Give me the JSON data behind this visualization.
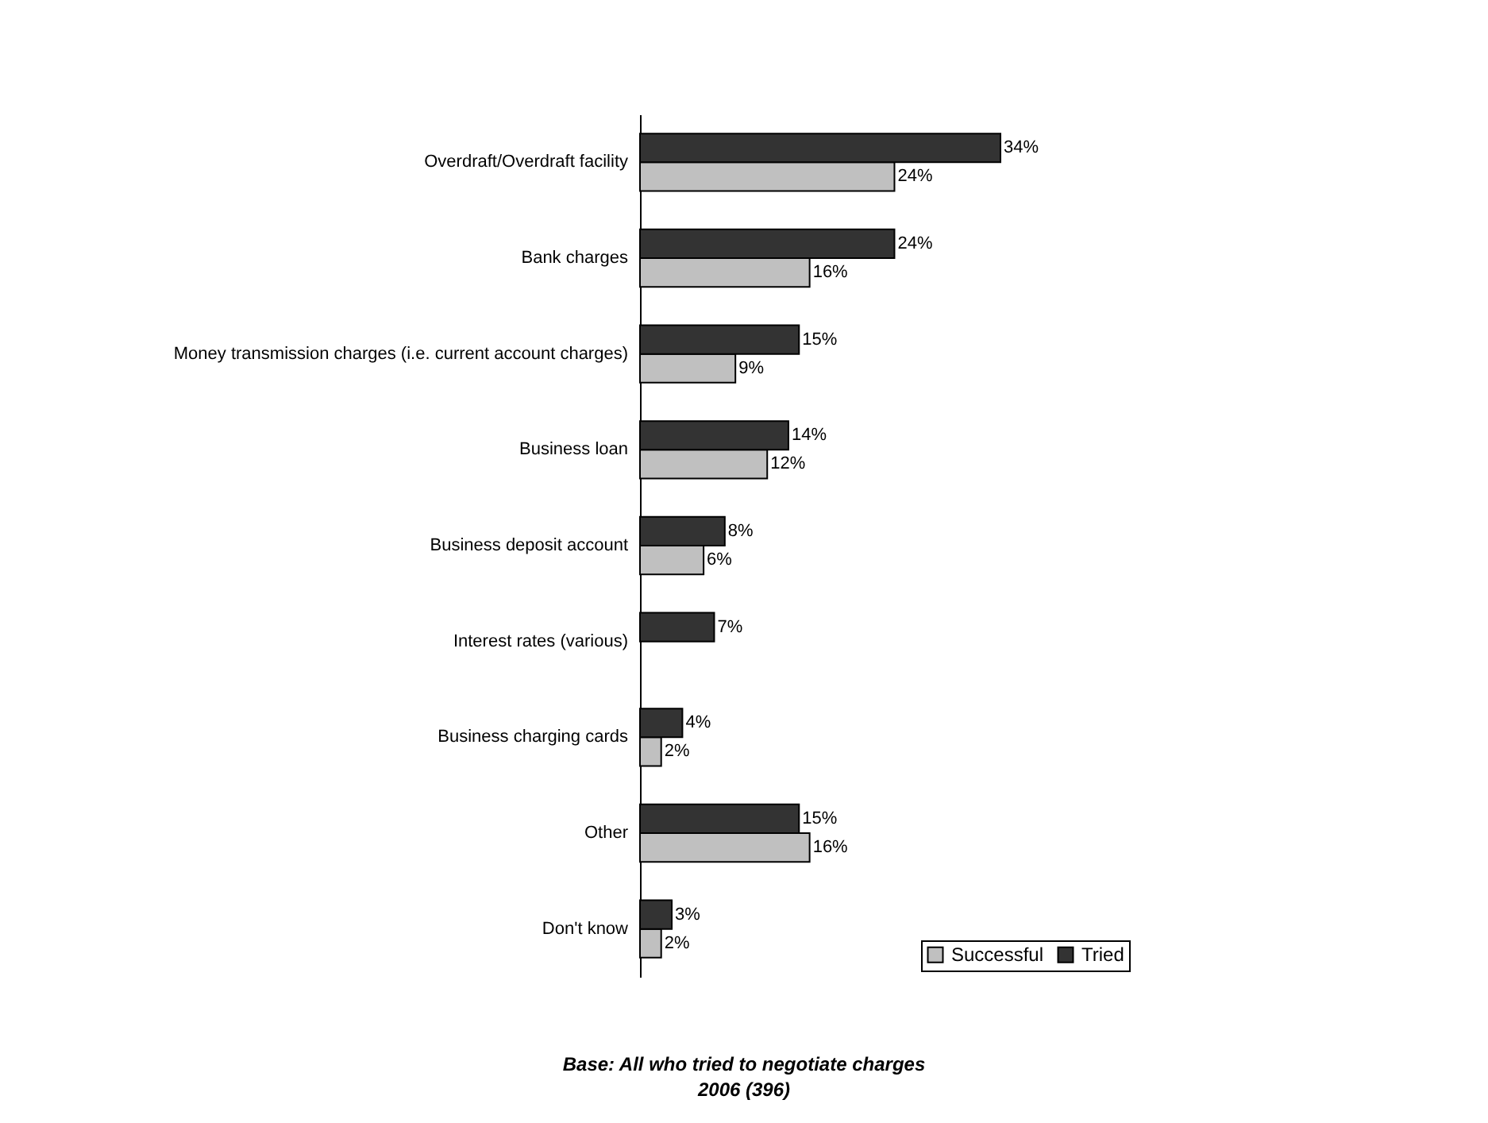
{
  "chart_data": {
    "type": "bar",
    "orientation": "horizontal",
    "categories": [
      "Overdraft/Overdraft facility",
      "Bank charges",
      "Money transmission charges (i.e. current account charges)",
      "Business loan",
      "Business deposit account",
      "Interest rates (various)",
      "Business charging cards",
      "Other",
      "Don't know"
    ],
    "series": [
      {
        "name": "Successful",
        "color": "#c0c0c0",
        "values": [
          24,
          16,
          9,
          12,
          6,
          null,
          2,
          16,
          2
        ],
        "value_labels": [
          "24%",
          "16%",
          "9%",
          "12%",
          "6%",
          null,
          "2%",
          "16%",
          "2%"
        ]
      },
      {
        "name": "Tried",
        "color": "#333333",
        "values": [
          34,
          24,
          15,
          14,
          8,
          7,
          4,
          15,
          3
        ],
        "value_labels": [
          "34%",
          "24%",
          "15%",
          "14%",
          "8%",
          "7%",
          "4%",
          "15%",
          "3%"
        ]
      }
    ],
    "legend": "bottom right",
    "annotations": [
      "Base: All who tried to negotiate charges",
      "2006 (396)"
    ]
  }
}
